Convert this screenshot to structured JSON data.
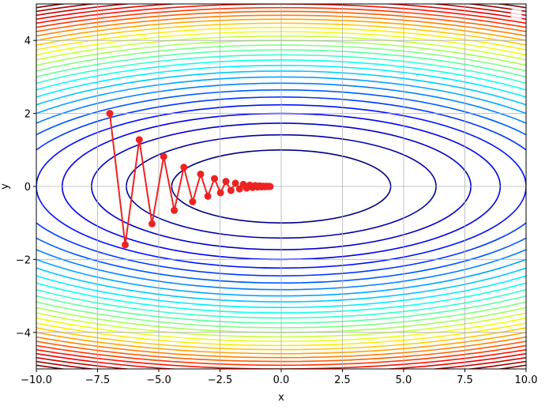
{
  "chart_data": {
    "type": "line",
    "title": "",
    "xlabel": "x",
    "ylabel": "y",
    "xlim": [
      -10,
      10
    ],
    "ylim": [
      -5,
      5
    ],
    "grid": true,
    "legend": "top-right",
    "legend_entries": [],
    "xticks": [
      -10,
      -7.5,
      -5,
      -2.5,
      0,
      2.5,
      5,
      7.5,
      10
    ],
    "xtick_labels": [
      "−10.0",
      "−7.5",
      "−5.0",
      "−2.5",
      "0.0",
      "2.5",
      "5.0",
      "7.5",
      "10.0"
    ],
    "yticks": [
      -4,
      -2,
      0,
      2,
      4
    ],
    "ytick_labels": [
      "−4",
      "−2",
      "0",
      "2",
      "4"
    ],
    "contour": {
      "function": "x^2/20 + y^2",
      "levels": [
        1,
        2,
        3,
        4,
        5,
        6,
        7,
        8,
        9,
        10,
        11,
        12,
        13,
        14,
        15,
        16,
        17,
        18,
        19,
        20,
        21,
        22,
        23,
        24,
        25,
        26,
        27,
        28,
        29
      ],
      "colormap": "jet"
    },
    "path": {
      "color": "#ee2222",
      "x": [
        -7,
        -6.37,
        -5.797,
        -5.275,
        -4.8,
        -4.368,
        -3.975,
        -3.617,
        -3.292,
        -2.996,
        -2.726,
        -2.481,
        -2.257,
        -2.054,
        -1.87,
        -1.701,
        -1.548,
        -1.409,
        -1.282,
        -1.166,
        -1.061,
        -0.966,
        -0.879,
        -0.8,
        -0.728,
        -0.662,
        -0.603,
        -0.549,
        -0.499,
        -0.454
      ],
      "y": [
        2,
        -1.6,
        1.28,
        -1.024,
        0.819,
        -0.655,
        0.524,
        -0.419,
        0.336,
        -0.268,
        0.215,
        -0.172,
        0.137,
        -0.11,
        0.088,
        -0.07,
        0.056,
        -0.045,
        0.036,
        -0.029,
        0.023,
        -0.018,
        0.015,
        -0.012,
        0.009,
        -0.008,
        0.006,
        -0.005,
        0.004,
        -0.003
      ]
    }
  }
}
